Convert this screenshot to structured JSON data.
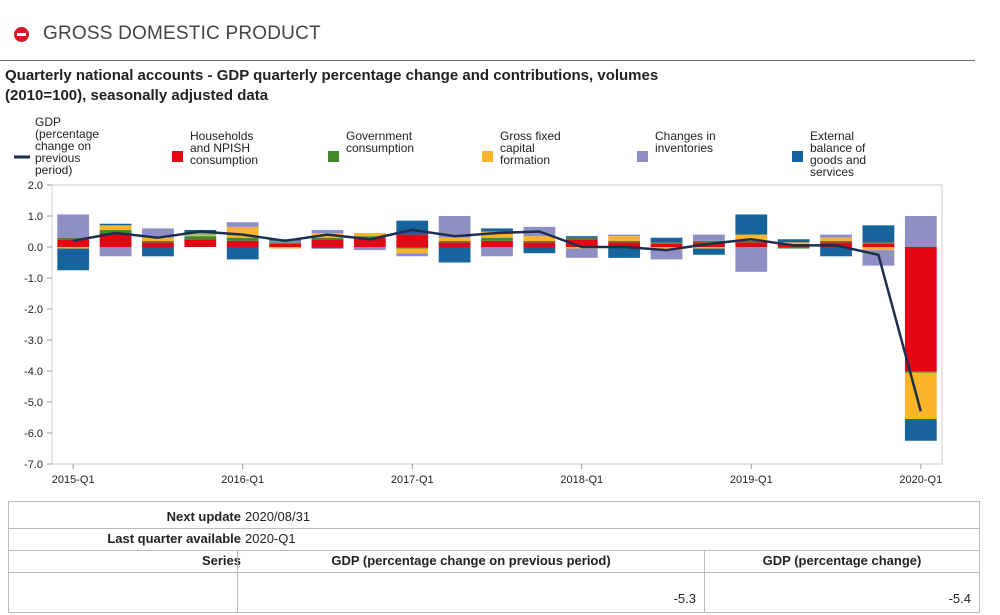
{
  "header": {
    "title": "GROSS DOMESTIC PRODUCT"
  },
  "chart_title_line1": "Quarterly national accounts - GDP quarterly percentage change and contributions, volumes",
  "chart_title_line2": "(2010=100), seasonally adjusted data",
  "chart_data": {
    "type": "bar",
    "stacked": true,
    "title": "Quarterly national accounts - GDP quarterly percentage change and contributions, volumes (2010=100), seasonally adjusted data",
    "ylim": [
      -7.0,
      2.0
    ],
    "yticks": [
      2.0,
      1.0,
      0.0,
      -1.0,
      -2.0,
      -3.0,
      -4.0,
      -5.0,
      -6.0,
      -7.0
    ],
    "ytick_labels": [
      "2.0",
      "1.0",
      "0.0",
      "-1.0",
      "-2.0",
      "-3.0",
      "-4.0",
      "-5.0",
      "-6.0",
      "-7.0"
    ],
    "grid": false,
    "categories": [
      "2015-Q1",
      "2015-Q2",
      "2015-Q3",
      "2015-Q4",
      "2016-Q1",
      "2016-Q2",
      "2016-Q3",
      "2016-Q4",
      "2017-Q1",
      "2017-Q2",
      "2017-Q3",
      "2017-Q4",
      "2018-Q1",
      "2018-Q2",
      "2018-Q3",
      "2018-Q4",
      "2019-Q1",
      "2019-Q2",
      "2019-Q3",
      "2019-Q4",
      "2020-Q1"
    ],
    "xtick_labels": [
      {
        "index": 0,
        "label": "2015-Q1"
      },
      {
        "index": 4,
        "label": "2016-Q1"
      },
      {
        "index": 8,
        "label": "2017-Q1"
      },
      {
        "index": 12,
        "label": "2018-Q1"
      },
      {
        "index": 16,
        "label": "2019-Q1"
      },
      {
        "index": 20,
        "label": "2020-Q1"
      }
    ],
    "series": [
      {
        "name": "Households and NPISH consumption",
        "color": "#e30613",
        "values": [
          0.25,
          0.45,
          0.15,
          0.25,
          0.2,
          0.1,
          0.25,
          0.3,
          0.4,
          0.15,
          0.2,
          0.15,
          0.25,
          0.15,
          0.1,
          0.15,
          0.15,
          0.1,
          0.15,
          0.1,
          -4.0
        ]
      },
      {
        "name": "Government consumption",
        "color": "#43872e",
        "values": [
          0.05,
          0.1,
          0.05,
          0.1,
          0.1,
          0.05,
          0.05,
          0.05,
          -0.05,
          0.05,
          0.1,
          0.05,
          0.05,
          0.05,
          0.05,
          0.05,
          0.05,
          -0.05,
          0.05,
          0.05,
          -0.05
        ]
      },
      {
        "name": "Gross fixed capital formation",
        "color": "#fbb529",
        "values": [
          -0.05,
          0.15,
          0.1,
          0.05,
          0.35,
          -0.05,
          0.15,
          0.1,
          -0.15,
          0.1,
          0.2,
          0.15,
          -0.05,
          0.15,
          -0.1,
          -0.05,
          0.2,
          0.05,
          0.1,
          -0.1,
          -1.5
        ]
      },
      {
        "name": "Changes in inventories",
        "color": "#8d8fc5",
        "values": [
          0.75,
          -0.3,
          0.3,
          0.05,
          0.15,
          0.05,
          0.1,
          -0.1,
          -0.1,
          0.7,
          -0.3,
          0.3,
          -0.3,
          0.05,
          -0.3,
          0.2,
          -0.8,
          0.0,
          0.1,
          -0.5,
          1.0
        ]
      },
      {
        "name": "External balance of goods and services",
        "color": "#17649c",
        "values": [
          -0.7,
          0.05,
          -0.3,
          0.1,
          -0.4,
          0.05,
          -0.05,
          0.0,
          0.45,
          -0.5,
          0.1,
          -0.2,
          0.05,
          -0.35,
          0.15,
          -0.2,
          0.65,
          0.1,
          -0.3,
          0.55,
          -0.7
        ]
      }
    ],
    "line": {
      "name": "GDP (percentage change on previous period)",
      "color": "#1c2f4e",
      "values": [
        0.2,
        0.45,
        0.3,
        0.5,
        0.4,
        0.2,
        0.4,
        0.25,
        0.55,
        0.35,
        0.45,
        0.5,
        0.0,
        0.0,
        -0.1,
        0.1,
        0.25,
        0.05,
        0.05,
        -0.25,
        -5.3
      ]
    },
    "legend": [
      {
        "name": "GDP (percentage change on previous period)",
        "kind": "line",
        "color": "#1c2f4e"
      },
      {
        "name": "Households and NPISH consumption",
        "kind": "box",
        "color": "#e30613"
      },
      {
        "name": "Government consumption",
        "kind": "box",
        "color": "#43872e"
      },
      {
        "name": "Gross fixed capital formation",
        "kind": "box",
        "color": "#fbb529"
      },
      {
        "name": "Changes in inventories",
        "kind": "box",
        "color": "#8d8fc5"
      },
      {
        "name": "External balance of goods and services",
        "kind": "box",
        "color": "#17649c"
      }
    ],
    "legend_lines": [
      [
        "GDP",
        "(percentage",
        "change on",
        "previous",
        "period)"
      ],
      [
        "Households",
        "and NPISH",
        "consumption"
      ],
      [
        "Government",
        "consumption"
      ],
      [
        "Gross fixed",
        "capital",
        "formation"
      ],
      [
        "Changes in",
        "inventories"
      ],
      [
        "External",
        "balance of",
        "goods and",
        "services"
      ]
    ],
    "legend_placement": "top"
  },
  "info": {
    "next_update_label": "Next update",
    "next_update_value": "2020/08/31",
    "last_quarter_label": "Last quarter available",
    "last_quarter_value": "2020-Q1",
    "series_label": "Series",
    "series_1_header": "GDP (percentage change on previous period)",
    "series_2_header": "GDP (percentage change)",
    "series_1_value": "-5.3",
    "series_2_value": "-5.4"
  }
}
